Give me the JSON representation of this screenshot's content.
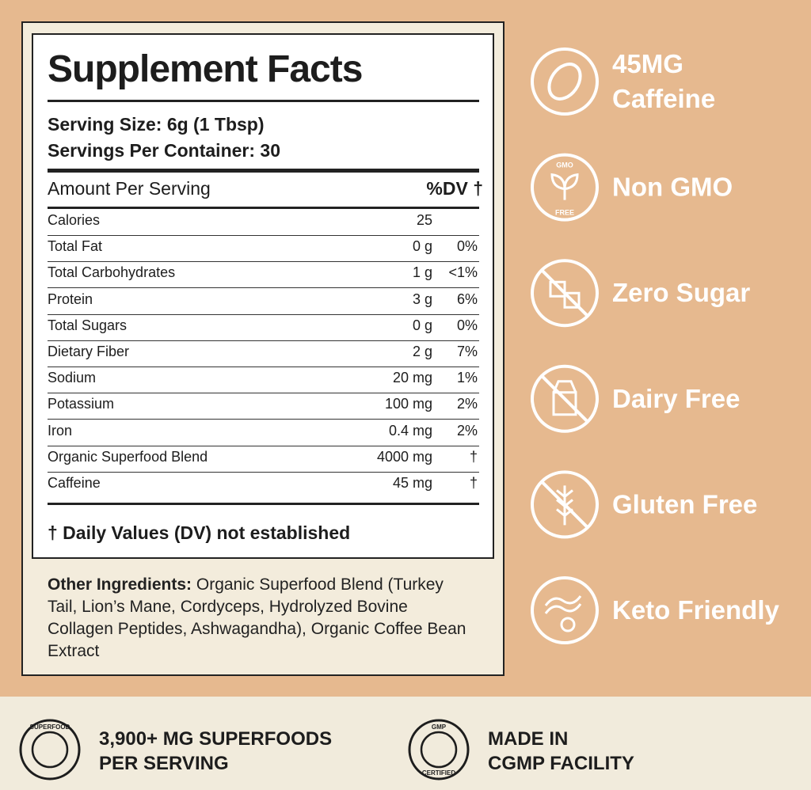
{
  "facts": {
    "title": "Supplement Facts",
    "serving_size": "Serving Size: 6g (1 Tbsp)",
    "servings_per_container": "Servings Per Container: 30",
    "header": {
      "amount": "Amount Per Serving",
      "dv": "%DV †"
    },
    "rows": [
      {
        "name": "Calories",
        "amount": "25"
      },
      {
        "name": "Total Fat",
        "amount": "0 g",
        "dv": "0%"
      },
      {
        "name": "Total Carbohydrates",
        "amount": "1 g",
        "dv": "<1%"
      },
      {
        "name": "Protein",
        "amount": "3 g",
        "dv": "6%"
      },
      {
        "name": "Total Sugars",
        "amount": "0 g",
        "dv": "0%"
      },
      {
        "name": "Dietary Fiber",
        "amount": "2 g",
        "dv": "7%"
      },
      {
        "name": "Sodium",
        "amount": "20 mg",
        "dv": "1%"
      },
      {
        "name": "Potassium",
        "amount": "100 mg",
        "dv": "2%"
      },
      {
        "name": "Iron",
        "amount": "0.4 mg",
        "dv": "2%"
      },
      {
        "name": "Organic Superfood Blend",
        "amount": "4000 mg",
        "dv": "†"
      },
      {
        "name": "Caffeine",
        "amount": "45 mg",
        "dv": "†"
      }
    ],
    "footnote": "† Daily Values (DV) not established"
  },
  "ingredients": {
    "label": "Other Ingredients:",
    "text": "Organic Superfood Blend (Turkey Tail, Lion’s Mane, Cordyceps, Hydrolyzed Bovine Collagen Peptides, Ashwagandha), Organic Coffee Bean Extract"
  },
  "badges": [
    {
      "lines": [
        "45MG",
        "Caffeine"
      ]
    },
    {
      "lines": [
        "Non GMO"
      ],
      "icon_top": "GMO",
      "icon_bottom": "FREE"
    },
    {
      "lines": [
        "Zero Sugar"
      ]
    },
    {
      "lines": [
        "Dairy Free"
      ]
    },
    {
      "lines": [
        "Gluten Free"
      ]
    },
    {
      "lines": [
        "Keto Friendly"
      ]
    }
  ],
  "footer": [
    {
      "lines": [
        "3,900+ MG SUPERFOODS",
        "PER SERVING"
      ],
      "icon_top": "SUPERFOOD"
    },
    {
      "lines": [
        "MADE IN",
        "CGMP FACILITY"
      ],
      "icon_top": "GMP",
      "icon_bottom": "CERTIFIED"
    }
  ]
}
